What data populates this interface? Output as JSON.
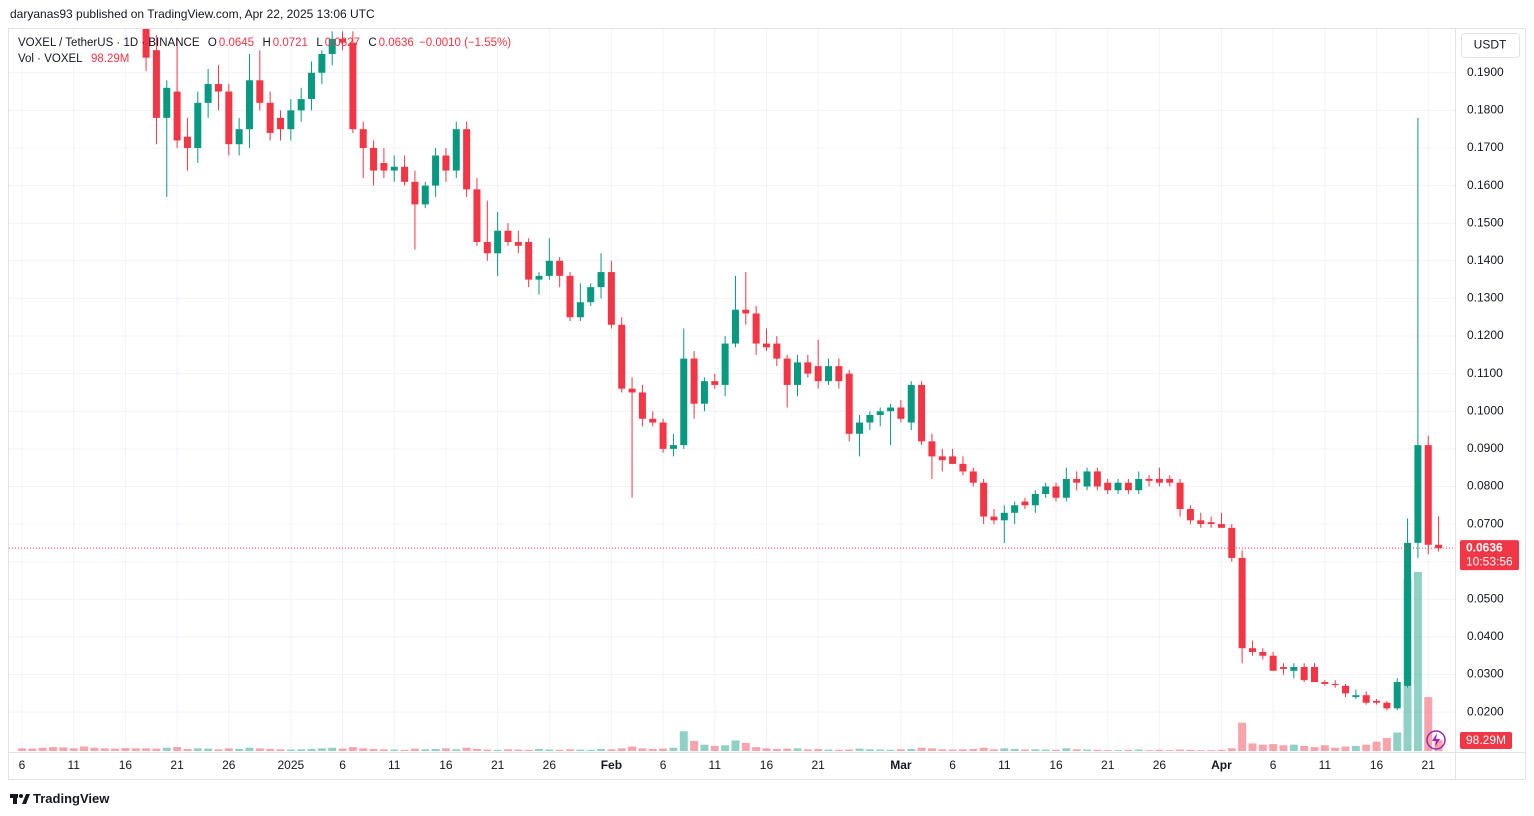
{
  "header": "daryanas93 published on TradingView.com, Apr 22, 2025 13:06 UTC",
  "footer_brand": "TradingView",
  "chart_data": {
    "type": "candlestick",
    "symbol": "VOXEL / TetherUS · 1D · BINANCE",
    "currency": "USDT",
    "legend_labels": [
      "O",
      "H",
      "L",
      "C"
    ],
    "change": "−0.0010 (−1.55%)",
    "countdown": "10:53:56",
    "up_color": "#089981",
    "down_color": "#f23645",
    "grid": true,
    "ylim": [
      0.0094,
      0.2019
    ],
    "yticks": [
      {
        "value": 0.02,
        "label": "0.0200"
      },
      {
        "value": 0.03,
        "label": "0.0300"
      },
      {
        "value": 0.04,
        "label": "0.0400"
      },
      {
        "value": 0.05,
        "label": "0.0500"
      },
      {
        "value": 0.06,
        "label": "0.0600"
      },
      {
        "value": 0.07,
        "label": "0.0700"
      },
      {
        "value": 0.08,
        "label": "0.0800"
      },
      {
        "value": 0.09,
        "label": "0.0900"
      },
      {
        "value": 0.1,
        "label": "0.1000"
      },
      {
        "value": 0.11,
        "label": "0.1100"
      },
      {
        "value": 0.12,
        "label": "0.1200"
      },
      {
        "value": 0.13,
        "label": "0.1300"
      },
      {
        "value": 0.14,
        "label": "0.1400"
      },
      {
        "value": 0.15,
        "label": "0.1500"
      },
      {
        "value": 0.16,
        "label": "0.1600"
      },
      {
        "value": 0.17,
        "label": "0.1700"
      },
      {
        "value": 0.18,
        "label": "0.1800"
      },
      {
        "value": 0.19,
        "label": "0.1900"
      }
    ],
    "categories": [
      "6",
      null,
      null,
      null,
      null,
      "11",
      null,
      null,
      null,
      null,
      "16",
      null,
      null,
      null,
      null,
      "21",
      null,
      null,
      null,
      null,
      "26",
      null,
      null,
      null,
      null,
      null,
      "2025",
      null,
      null,
      null,
      null,
      "6",
      null,
      null,
      null,
      null,
      "11",
      null,
      null,
      null,
      null,
      "16",
      null,
      null,
      null,
      null,
      "21",
      null,
      null,
      null,
      null,
      "26",
      null,
      null,
      null,
      null,
      null,
      "Feb",
      null,
      null,
      null,
      null,
      "6",
      null,
      null,
      null,
      null,
      "11",
      null,
      null,
      null,
      null,
      "16",
      null,
      null,
      null,
      null,
      "21",
      null,
      null,
      null,
      null,
      null,
      null,
      null,
      "Mar",
      null,
      null,
      null,
      null,
      "6",
      null,
      null,
      null,
      null,
      "11",
      null,
      null,
      null,
      null,
      "16",
      null,
      null,
      null,
      null,
      "21",
      null,
      null,
      null,
      null,
      "26",
      null,
      null,
      null,
      null,
      null,
      "Apr",
      null,
      null,
      null,
      null,
      "6",
      null,
      null,
      null,
      null,
      "11",
      null,
      null,
      null,
      null,
      "16",
      null,
      null,
      null,
      null,
      "21",
      null
    ],
    "open": [
      null,
      null,
      null,
      null,
      null,
      null,
      null,
      null,
      null,
      null,
      null,
      null,
      0.204,
      0.196,
      0.178,
      0.185,
      0.173,
      0.17,
      0.182,
      0.187,
      0.185,
      0.171,
      0.175,
      0.188,
      0.182,
      0.178,
      0.175,
      0.18,
      0.183,
      0.19,
      0.195,
      0.199,
      0.198,
      0.175,
      0.17,
      0.166,
      0.164,
      0.165,
      0.161,
      0.155,
      0.16,
      0.168,
      0.164,
      0.175,
      0.159,
      0.145,
      0.142,
      0.148,
      0.145,
      0.145,
      0.135,
      0.136,
      0.14,
      0.136,
      0.125,
      0.129,
      0.133,
      0.137,
      0.123,
      0.106,
      0.105,
      0.098,
      0.097,
      0.09,
      0.091,
      0.114,
      0.102,
      0.108,
      0.107,
      0.118,
      0.127,
      0.126,
      0.118,
      0.118,
      0.114,
      0.107,
      0.113,
      0.112,
      0.108,
      0.112,
      0.11,
      0.094,
      0.097,
      0.099,
      0.1,
      0.101,
      0.097,
      0.107,
      0.092,
      0.088,
      0.088,
      0.086,
      0.084,
      0.081,
      0.072,
      0.071,
      0.073,
      0.076,
      0.075,
      0.078,
      0.08,
      0.077,
      0.082,
      0.08,
      0.084,
      0.081,
      0.079,
      0.081,
      0.079,
      0.082,
      0.082,
      0.082,
      0.081,
      0.074,
      0.071,
      0.0705,
      0.07,
      0.069,
      0.061,
      0.037,
      0.036,
      0.035,
      0.032,
      0.031,
      0.032,
      0.032,
      0.028,
      0.0275,
      0.027,
      0.024,
      0.0245,
      0.023,
      0.0225,
      0.021,
      0.027,
      0.065,
      0.091,
      0.0645
    ],
    "high": [
      null,
      null,
      null,
      null,
      null,
      null,
      null,
      null,
      null,
      null,
      null,
      null,
      0.21,
      0.2,
      0.188,
      0.199,
      0.178,
      0.185,
      0.191,
      0.192,
      0.187,
      0.178,
      0.195,
      0.196,
      0.185,
      0.18,
      0.183,
      0.186,
      0.193,
      0.196,
      0.201,
      0.201,
      0.201,
      0.177,
      0.172,
      0.17,
      0.168,
      0.168,
      0.164,
      0.161,
      0.17,
      0.17,
      0.177,
      0.177,
      0.162,
      0.156,
      0.153,
      0.15,
      0.148,
      0.146,
      0.137,
      0.146,
      0.141,
      0.137,
      0.134,
      0.134,
      0.142,
      0.14,
      0.125,
      0.109,
      0.107,
      0.1,
      0.098,
      0.094,
      0.122,
      0.116,
      0.109,
      0.11,
      0.12,
      0.136,
      0.137,
      0.128,
      0.122,
      0.12,
      0.115,
      0.115,
      0.115,
      0.119,
      0.114,
      0.114,
      0.111,
      0.099,
      0.1,
      0.101,
      0.102,
      0.103,
      0.108,
      0.108,
      0.094,
      0.09,
      0.09,
      0.088,
      0.085,
      0.082,
      0.074,
      0.075,
      0.076,
      0.077,
      0.079,
      0.081,
      0.081,
      0.085,
      0.084,
      0.085,
      0.085,
      0.082,
      0.082,
      0.082,
      0.084,
      0.083,
      0.085,
      0.083,
      0.082,
      0.075,
      0.073,
      0.072,
      0.073,
      0.07,
      0.063,
      0.039,
      0.037,
      0.036,
      0.033,
      0.033,
      0.033,
      0.033,
      0.0285,
      0.0285,
      0.0275,
      0.026,
      0.0255,
      0.0235,
      0.023,
      0.029,
      0.0715,
      0.178,
      0.0935,
      0.0721
    ],
    "low": [
      null,
      null,
      null,
      null,
      null,
      null,
      null,
      null,
      null,
      null,
      null,
      null,
      0.1905,
      0.171,
      0.157,
      0.17,
      0.164,
      0.166,
      0.178,
      0.18,
      0.168,
      0.168,
      0.17,
      0.18,
      0.172,
      0.172,
      0.172,
      0.177,
      0.18,
      0.187,
      0.192,
      0.196,
      0.174,
      0.162,
      0.16,
      0.162,
      0.161,
      0.16,
      0.143,
      0.154,
      0.157,
      0.161,
      0.162,
      0.157,
      0.144,
      0.14,
      0.136,
      0.144,
      0.142,
      0.133,
      0.131,
      0.135,
      0.133,
      0.124,
      0.124,
      0.128,
      0.13,
      0.122,
      0.105,
      0.077,
      0.096,
      0.096,
      0.089,
      0.088,
      0.09,
      0.098,
      0.1,
      0.106,
      0.104,
      0.117,
      0.123,
      0.115,
      0.116,
      0.112,
      0.101,
      0.104,
      0.109,
      0.106,
      0.107,
      0.106,
      0.092,
      0.088,
      0.095,
      0.096,
      0.091,
      0.097,
      0.095,
      0.091,
      0.082,
      0.084,
      0.086,
      0.083,
      0.08,
      0.07,
      0.07,
      0.065,
      0.07,
      0.074,
      0.073,
      0.077,
      0.076,
      0.076,
      0.079,
      0.079,
      0.079,
      0.078,
      0.078,
      0.078,
      0.078,
      0.08,
      0.08,
      0.08,
      0.072,
      0.07,
      0.069,
      0.069,
      0.069,
      0.06,
      0.033,
      0.035,
      0.034,
      0.031,
      0.03,
      0.029,
      0.028,
      0.028,
      0.027,
      0.0265,
      0.024,
      0.0235,
      0.022,
      0.022,
      0.0205,
      0.0205,
      0.0265,
      0.061,
      0.062,
      0.0627
    ],
    "close": [
      null,
      null,
      null,
      null,
      null,
      null,
      null,
      null,
      null,
      null,
      null,
      null,
      0.194,
      0.178,
      0.186,
      0.172,
      0.17,
      0.182,
      0.187,
      0.185,
      0.171,
      0.175,
      0.188,
      0.182,
      0.174,
      0.175,
      0.18,
      0.183,
      0.19,
      0.195,
      0.199,
      0.198,
      0.175,
      0.17,
      0.164,
      0.164,
      0.165,
      0.161,
      0.155,
      0.16,
      0.168,
      0.164,
      0.175,
      0.159,
      0.145,
      0.142,
      0.148,
      0.145,
      0.144,
      0.135,
      0.136,
      0.14,
      0.136,
      0.125,
      0.129,
      0.133,
      0.137,
      0.123,
      0.106,
      0.105,
      0.098,
      0.097,
      0.09,
      0.091,
      0.114,
      0.102,
      0.108,
      0.107,
      0.118,
      0.127,
      0.126,
      0.118,
      0.117,
      0.114,
      0.107,
      0.113,
      0.11,
      0.108,
      0.112,
      0.108,
      0.094,
      0.097,
      0.099,
      0.1,
      0.101,
      0.098,
      0.107,
      0.092,
      0.088,
      0.087,
      0.086,
      0.084,
      0.081,
      0.072,
      0.071,
      0.073,
      0.075,
      0.075,
      0.078,
      0.08,
      0.077,
      0.082,
      0.081,
      0.084,
      0.08,
      0.079,
      0.081,
      0.079,
      0.082,
      0.0815,
      0.081,
      0.081,
      0.074,
      0.071,
      0.07,
      0.07,
      0.069,
      0.061,
      0.037,
      0.036,
      0.035,
      0.031,
      0.0315,
      0.032,
      0.0285,
      0.028,
      0.0275,
      0.0272,
      0.025,
      0.0245,
      0.0225,
      0.0225,
      0.021,
      0.028,
      0.065,
      0.091,
      0.0645,
      0.0636
    ],
    "volume": {
      "name": "Vol · VOXEL",
      "values": [
        30,
        28,
        35,
        40,
        38,
        30,
        45,
        35,
        30,
        28,
        32,
        30,
        30,
        28,
        35,
        40,
        25,
        30,
        28,
        22,
        30,
        25,
        35,
        30,
        25,
        22,
        20,
        22,
        25,
        30,
        35,
        28,
        40,
        30,
        25,
        22,
        20,
        18,
        28,
        22,
        25,
        30,
        22,
        35,
        25,
        20,
        18,
        22,
        20,
        18,
        25,
        20,
        18,
        22,
        20,
        18,
        25,
        22,
        30,
        45,
        30,
        25,
        28,
        35,
        170,
        90,
        60,
        50,
        55,
        95,
        75,
        40,
        30,
        25,
        28,
        30,
        22,
        25,
        20,
        18,
        20,
        28,
        22,
        20,
        18,
        22,
        25,
        35,
        30,
        22,
        20,
        22,
        25,
        35,
        22,
        30,
        25,
        20,
        22,
        20,
        18,
        30,
        22,
        20,
        18,
        15,
        15,
        18,
        20,
        15,
        18,
        15,
        20,
        18,
        15,
        15,
        18,
        30,
        240,
        70,
        60,
        65,
        55,
        60,
        50,
        40,
        55,
        35,
        45,
        50,
        60,
        85,
        115,
        160,
        1420,
        1475,
        450,
        98.29
      ],
      "value_labels": [
        null,
        null,
        null,
        null,
        null,
        null,
        null,
        null,
        null,
        null,
        null,
        null,
        null,
        null,
        null,
        null,
        null,
        null,
        null,
        null,
        null,
        null,
        null,
        null,
        null,
        null,
        null,
        null,
        null,
        null,
        null,
        null,
        null,
        null,
        null,
        null,
        null,
        null,
        null,
        null,
        null,
        null,
        null,
        null,
        null,
        null,
        null,
        null,
        null,
        null,
        null,
        null,
        null,
        null,
        null,
        null,
        null,
        null,
        null,
        null,
        null,
        null,
        null,
        null,
        null,
        null,
        null,
        null,
        null,
        null,
        null,
        null,
        null,
        null,
        null,
        null,
        null,
        null,
        null,
        null,
        null,
        null,
        null,
        null,
        null,
        null,
        null,
        null,
        null,
        null,
        null,
        null,
        null,
        null,
        null,
        null,
        null,
        null,
        null,
        null,
        null,
        null,
        null,
        null,
        null,
        null,
        null,
        null,
        null,
        null,
        null,
        null,
        null,
        null,
        null,
        null,
        null,
        null,
        null,
        null,
        null,
        null,
        null,
        null,
        null,
        null,
        null,
        null,
        null,
        null,
        null,
        null,
        null,
        null,
        null,
        null,
        null,
        "98.29M"
      ]
    }
  }
}
